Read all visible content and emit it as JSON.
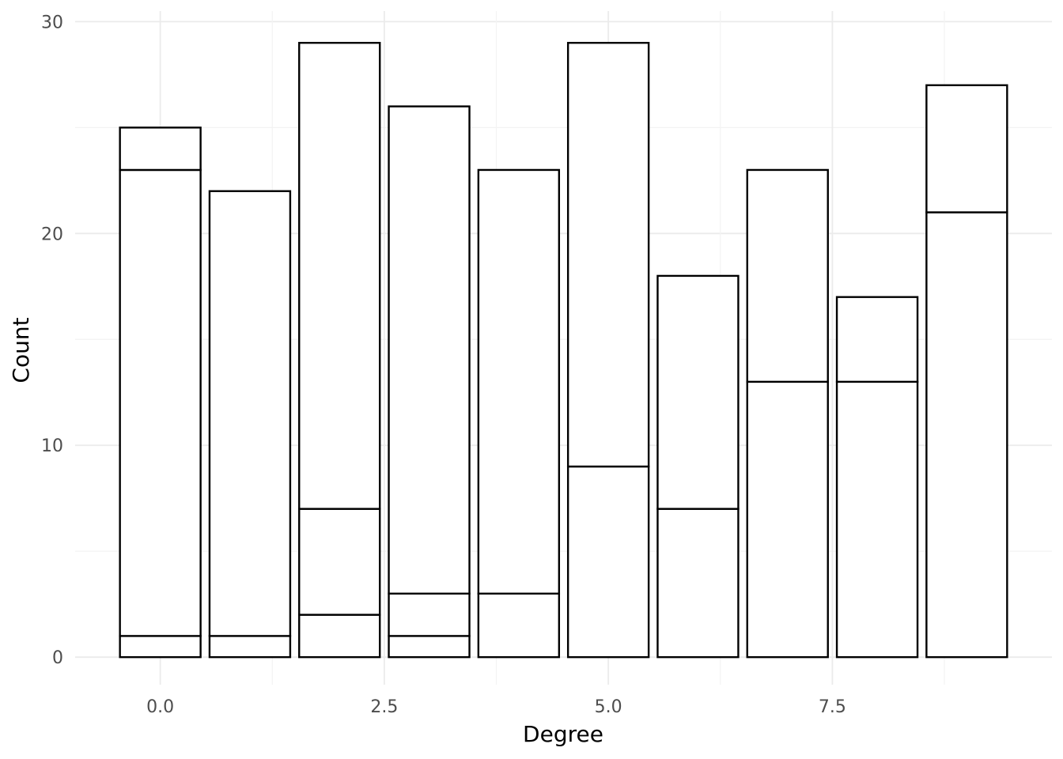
{
  "chart_data": {
    "type": "bar",
    "stacked": true,
    "xlabel": "Degree",
    "ylabel": "Count",
    "xlim": [
      -0.95,
      9.95
    ],
    "ylim": [
      -1.3,
      30.5
    ],
    "x_ticks": [
      0.0,
      2.5,
      5.0,
      7.5
    ],
    "x_tick_labels": [
      "0.0",
      "2.5",
      "5.0",
      "7.5"
    ],
    "y_ticks": [
      0,
      10,
      20,
      30
    ],
    "y_tick_labels": [
      "0",
      "10",
      "20",
      "30"
    ],
    "grid": true,
    "bar_fill": "#ffffff",
    "bar_outline": "#000000",
    "bars": [
      {
        "x": 0,
        "total": 25,
        "boundaries": [
          1,
          23
        ]
      },
      {
        "x": 1,
        "total": 22,
        "boundaries": [
          1
        ]
      },
      {
        "x": 2,
        "total": 29,
        "boundaries": [
          2,
          7
        ]
      },
      {
        "x": 3,
        "total": 26,
        "boundaries": [
          1,
          3
        ]
      },
      {
        "x": 4,
        "total": 23,
        "boundaries": [
          3
        ]
      },
      {
        "x": 5,
        "total": 29,
        "boundaries": [
          9
        ]
      },
      {
        "x": 6,
        "total": 18,
        "boundaries": [
          7
        ]
      },
      {
        "x": 7,
        "total": 23,
        "boundaries": [
          13
        ]
      },
      {
        "x": 8,
        "total": 17,
        "boundaries": [
          13
        ]
      },
      {
        "x": 9,
        "total": 27,
        "boundaries": [
          21
        ]
      }
    ]
  }
}
